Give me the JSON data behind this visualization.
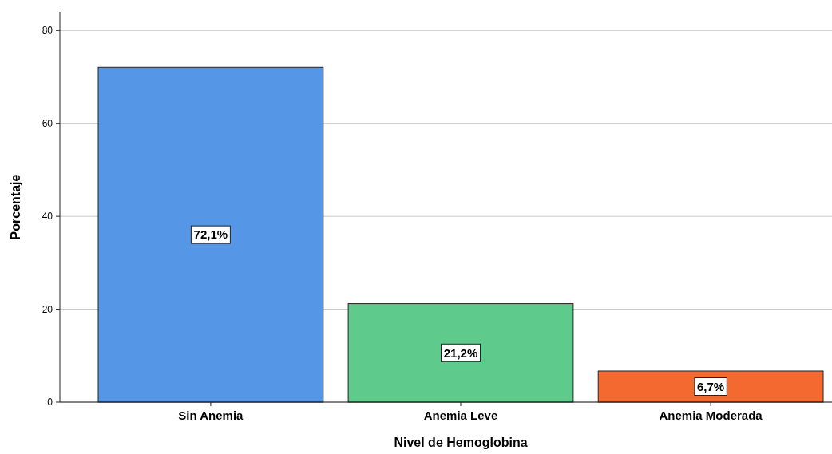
{
  "chart_data": {
    "type": "bar",
    "xlabel": "Nivel de Hemoglobina",
    "ylabel": "Porcentaje",
    "categories": [
      "Sin Anemia",
      "Anemia Leve",
      "Anemia Moderada"
    ],
    "values": [
      72.1,
      21.2,
      6.7
    ],
    "colors": [
      "#5596e6",
      "#5ecb8c",
      "#f3692f"
    ],
    "value_labels": [
      "72,1%",
      "21,2%",
      "6,7%"
    ],
    "ylim": [
      0,
      84
    ],
    "yticks": [
      0,
      20,
      40,
      60,
      80
    ],
    "grid": "y"
  }
}
